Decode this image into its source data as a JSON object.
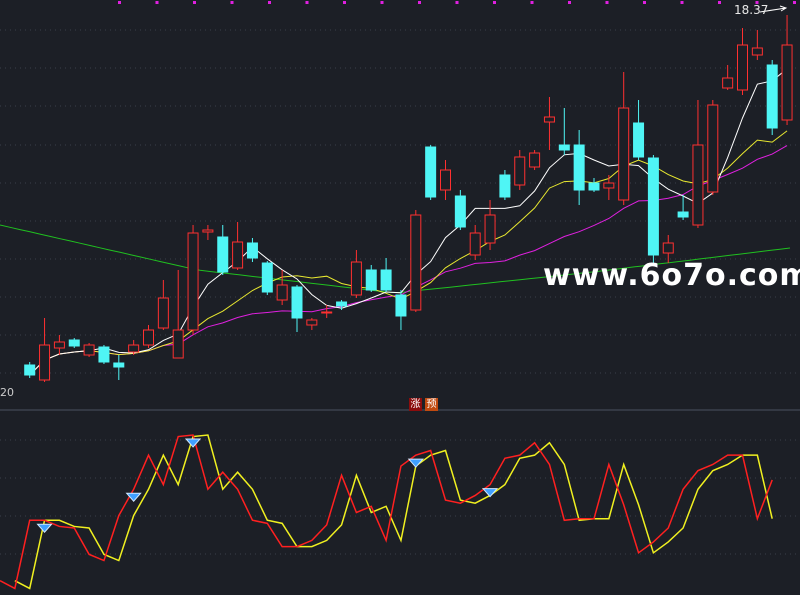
{
  "chart_data": [
    {
      "type": "candlestick",
      "last_price_label": "18.37",
      "left_label": "20",
      "colors": {
        "up": "#ff3030",
        "down": "#4ff5f5",
        "ma5": "#ffffff",
        "ma10": "#e8e830",
        "ma20": "#e020e0",
        "ma60": "#20c020"
      },
      "ohlc": [
        [
          11.37,
          11.43,
          11.11,
          11.17
        ],
        [
          11.07,
          12.31,
          11.03,
          11.77
        ],
        [
          11.71,
          11.97,
          11.57,
          11.83
        ],
        [
          11.87,
          11.91,
          11.71,
          11.75
        ],
        [
          11.57,
          11.81,
          11.53,
          11.77
        ],
        [
          11.73,
          11.77,
          11.39,
          11.43
        ],
        [
          11.41,
          11.57,
          11.07,
          11.33
        ],
        [
          11.63,
          11.87,
          11.57,
          11.77
        ],
        [
          11.77,
          12.17,
          11.71,
          12.07
        ],
        [
          12.11,
          13.07,
          12.07,
          12.71
        ],
        [
          11.51,
          13.27,
          11.51,
          12.07
        ],
        [
          12.07,
          14.17,
          11.97,
          14.01
        ],
        [
          14.03,
          14.17,
          13.87,
          14.07
        ],
        [
          13.93,
          14.17,
          13.17,
          13.23
        ],
        [
          13.31,
          14.23,
          13.27,
          13.83
        ],
        [
          13.81,
          13.91,
          13.43,
          13.51
        ],
        [
          13.41,
          13.45,
          12.77,
          12.83
        ],
        [
          12.67,
          13.27,
          12.57,
          12.97
        ],
        [
          12.93,
          12.97,
          12.03,
          12.31
        ],
        [
          12.17,
          12.31,
          12.07,
          12.27
        ],
        [
          12.41,
          12.57,
          12.31,
          12.43
        ],
        [
          12.63,
          12.67,
          12.47,
          12.55
        ],
        [
          12.77,
          13.67,
          12.71,
          13.43
        ],
        [
          13.27,
          13.37,
          12.83,
          12.87
        ],
        [
          13.27,
          13.51,
          12.83,
          12.87
        ],
        [
          12.77,
          12.87,
          12.07,
          12.35
        ],
        [
          12.47,
          14.47,
          12.43,
          14.37
        ],
        [
          15.73,
          15.77,
          14.67,
          14.73
        ],
        [
          14.87,
          15.47,
          14.67,
          15.27
        ],
        [
          14.75,
          14.87,
          14.07,
          14.13
        ],
        [
          13.57,
          14.17,
          13.47,
          14.01
        ],
        [
          13.81,
          14.67,
          13.67,
          14.37
        ],
        [
          15.17,
          15.27,
          14.67,
          14.73
        ],
        [
          14.97,
          15.67,
          14.87,
          15.53
        ],
        [
          15.33,
          15.67,
          15.27,
          15.61
        ],
        [
          16.23,
          16.73,
          15.67,
          16.33
        ],
        [
          15.77,
          16.51,
          15.57,
          15.67
        ],
        [
          15.77,
          16.07,
          14.57,
          14.87
        ],
        [
          15.01,
          15.11,
          14.83,
          14.87
        ],
        [
          14.91,
          15.17,
          14.67,
          15.01
        ],
        [
          14.67,
          17.23,
          14.57,
          16.51
        ],
        [
          16.21,
          16.67,
          15.47,
          15.53
        ],
        [
          15.51,
          15.57,
          13.37,
          13.57
        ],
        [
          13.61,
          13.97,
          13.41,
          13.81
        ],
        [
          14.43,
          14.77,
          14.27,
          14.33
        ],
        [
          14.17,
          16.67,
          14.11,
          15.77
        ],
        [
          14.83,
          16.67,
          14.77,
          16.57
        ],
        [
          16.91,
          17.37,
          16.87,
          17.11
        ],
        [
          16.87,
          18.11,
          16.77,
          17.77
        ],
        [
          17.57,
          18.07,
          17.47,
          17.71
        ],
        [
          17.37,
          17.47,
          15.97,
          16.11
        ],
        [
          16.27,
          18.37,
          16.17,
          17.77
        ]
      ],
      "ma60_trend": [
        14.17,
        13.27,
        12.81,
        13.23,
        13.71
      ]
    },
    {
      "type": "line",
      "tags": [
        "涨",
        "预"
      ],
      "colors": {
        "main": "#ff2020",
        "lag": "#f0f020",
        "signal": "#40a0ff"
      },
      "values": [
        6,
        1,
        45,
        45,
        41,
        40,
        23,
        19,
        48,
        65,
        87,
        68,
        99,
        100,
        65,
        76,
        65,
        45,
        43,
        28,
        28,
        32,
        42,
        74,
        50,
        54,
        32,
        80,
        87,
        90,
        58,
        56,
        61,
        68,
        85,
        87,
        95,
        81,
        45,
        46,
        46,
        81,
        55,
        24,
        31,
        40,
        65,
        77,
        81,
        87,
        87,
        46,
        71
      ],
      "signal_indices": [
        3,
        9,
        13,
        28,
        33
      ]
    }
  ],
  "watermark": "www.6o7o.com"
}
